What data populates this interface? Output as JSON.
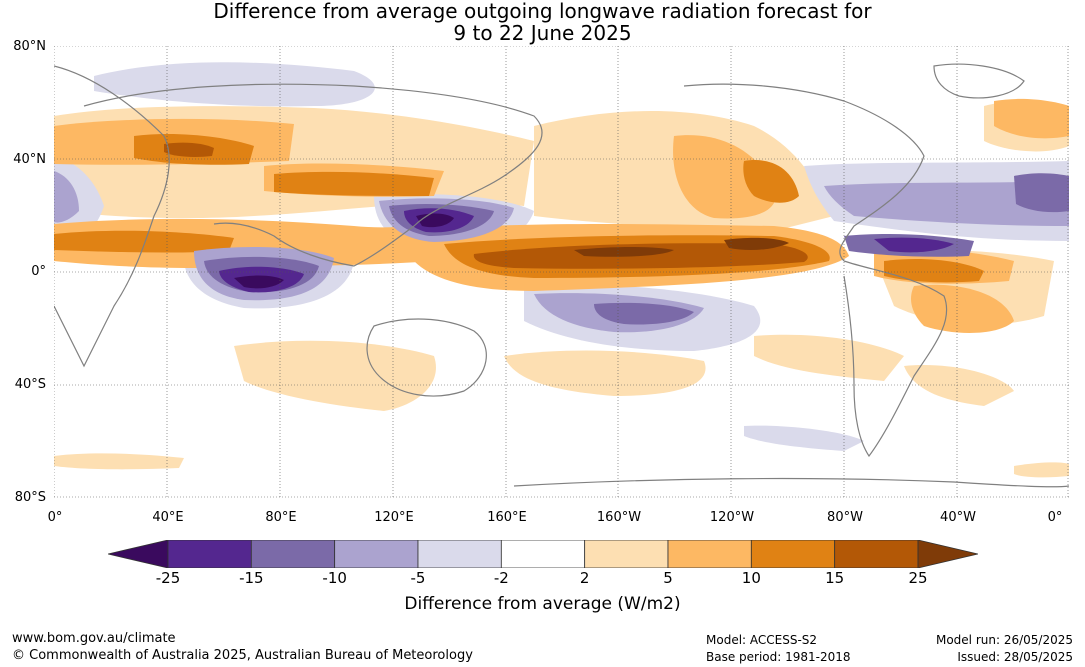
{
  "title": {
    "line1": "Difference from average outgoing longwave radiation forecast for",
    "line2": "9 to 22 June 2025"
  },
  "latitude_labels": [
    "80°N",
    "40°N",
    "0°",
    "40°S",
    "80°S"
  ],
  "longitude_labels": [
    "0°",
    "40°E",
    "80°E",
    "120°E",
    "160°E",
    "160°W",
    "120°W",
    "80°W",
    "40°W",
    "0°"
  ],
  "colorbar": {
    "ticks": [
      "-25",
      "-15",
      "-10",
      "-5",
      "-2",
      "2",
      "5",
      "10",
      "15",
      "25"
    ],
    "label": "Difference from average (W/m2)",
    "colors": [
      "#3a0a5e",
      "#54278f",
      "#7b6aa8",
      "#aba3cf",
      "#dadaeb",
      "#ffffff",
      "#fddfb2",
      "#fdb863",
      "#e08214",
      "#b35806",
      "#7f3b08"
    ]
  },
  "footer": {
    "url": "www.bom.gov.au/climate",
    "copyright": "© Commonwealth of Australia 2025, Australian Bureau of Meteorology",
    "model": "Model: ACCESS-S2",
    "base_period": "Base period: 1981-2018",
    "model_run": "Model run: 26/05/2025",
    "issued": "Issued: 28/05/2025"
  }
}
